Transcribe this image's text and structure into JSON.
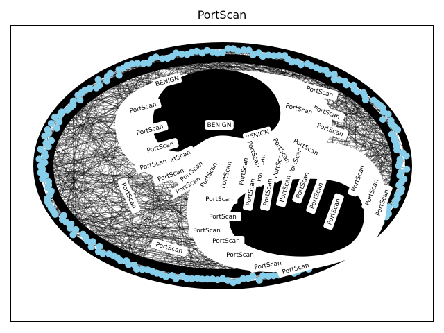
{
  "title": "PortScan",
  "node_color": "#87ceeb",
  "edge_color": "#000000",
  "chart_data": {
    "type": "network-graph",
    "title": "PortScan",
    "node_labels_shown": [
      "PortScan",
      "BENIGN"
    ],
    "labels": [
      {
        "text": "BENIGN"
      },
      {
        "text": "BENIGN"
      },
      {
        "text": "BENIGN"
      },
      {
        "text": "PortScan"
      },
      {
        "text": "PortScan"
      },
      {
        "text": "PortScan"
      },
      {
        "text": "PortScan"
      },
      {
        "text": "PortScan"
      },
      {
        "text": "PortScan"
      },
      {
        "text": "PortScan"
      },
      {
        "text": "PortScan"
      },
      {
        "text": "PortScan"
      },
      {
        "text": "PortScan"
      },
      {
        "text": "PortScan"
      },
      {
        "text": "PortScan"
      },
      {
        "text": "PortScan"
      },
      {
        "text": "PortScan"
      },
      {
        "text": "PortScan"
      },
      {
        "text": "PortScan"
      },
      {
        "text": "PortScan"
      },
      {
        "text": "PortScan"
      },
      {
        "text": "PortScan"
      },
      {
        "text": "PortScan"
      },
      {
        "text": "PortScan"
      },
      {
        "text": "PortScan"
      },
      {
        "text": "PortScan"
      },
      {
        "text": "PortScan"
      },
      {
        "text": "PortScan"
      },
      {
        "text": "PortScan"
      },
      {
        "text": "PortScan"
      },
      {
        "text": "PortScan"
      },
      {
        "text": "PortScan"
      },
      {
        "text": "PortScan"
      },
      {
        "text": "PortScan"
      },
      {
        "text": "PortScan"
      },
      {
        "text": "PortScan"
      },
      {
        "text": "PortScan"
      },
      {
        "text": "PortScan"
      },
      {
        "text": "PortScan"
      },
      {
        "text": "PortScan"
      },
      {
        "text": "PortScan"
      },
      {
        "text": "PortScan"
      }
    ]
  }
}
